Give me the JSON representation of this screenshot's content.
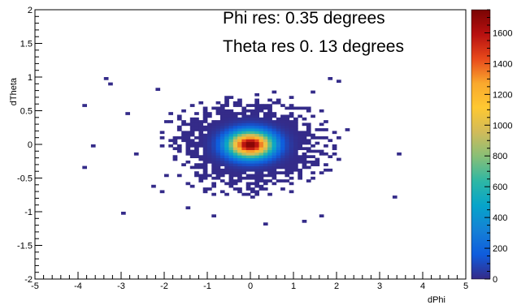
{
  "chart_data": {
    "type": "heatmap",
    "title": "",
    "xlabel": "dPhi",
    "ylabel": "dTheta",
    "xlim": [
      -5,
      5
    ],
    "ylim": [
      -2,
      2
    ],
    "x_ticks": [
      "-5",
      "-4",
      "-3",
      "-2",
      "-1",
      "0",
      "1",
      "2",
      "3",
      "4",
      "5"
    ],
    "y_ticks": [
      "-2",
      "-1.5",
      "-1",
      "-0.5",
      "0",
      "0.5",
      "1",
      "1.5",
      "2"
    ],
    "annotations": [
      "Phi res: 0.35 degrees",
      "Theta res 0. 13 degrees"
    ],
    "colorbar": {
      "min": 0,
      "max": 1750,
      "ticks": [
        "0",
        "200",
        "400",
        "600",
        "800",
        "1000",
        "1200",
        "1400",
        "1600"
      ],
      "colors": [
        "#352a87",
        "#0f5cdd",
        "#1481d6",
        "#06a4ca",
        "#2eb7a4",
        "#87bf77",
        "#d1bb59",
        "#fec832",
        "#f9a82d",
        "#e8491b",
        "#b71010",
        "#7a0403"
      ]
    },
    "peak": {
      "x": 0.0,
      "y": 0.0,
      "value": 1750
    },
    "sigma": {
      "x": 0.35,
      "y": 0.13
    },
    "grid": false
  }
}
